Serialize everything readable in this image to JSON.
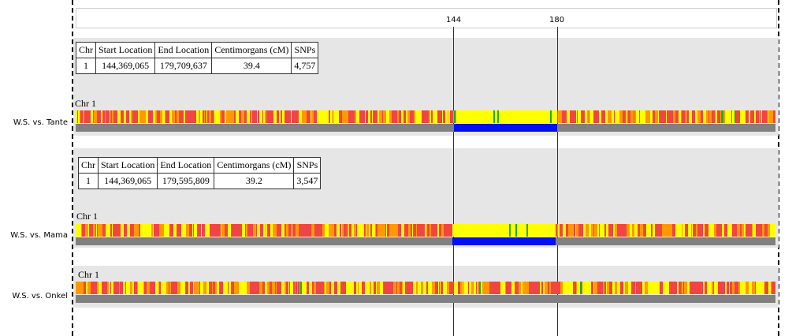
{
  "ruler": {
    "ticks": [
      "144",
      "180"
    ]
  },
  "columns": [
    "Chr",
    "Start Location",
    "End Location",
    "Centimorgans (cM)",
    "SNPs"
  ],
  "comparisons": [
    {
      "label": "W.S. vs. Tante",
      "chr_label": "Chr 1",
      "segment": {
        "chr": "1",
        "start": "144,369,065",
        "end": "179,709,637",
        "cm": "39.4",
        "snps": "4,757"
      }
    },
    {
      "label": "W.S. vs. Mama",
      "chr_label": "Chr 1",
      "segment": {
        "chr": "1",
        "start": "144,369,065",
        "end": "179,595,809",
        "cm": "39.2",
        "snps": "3,547"
      }
    },
    {
      "label": "W.S. vs. Onkel",
      "chr_label": "Chr 1"
    }
  ],
  "colors": {
    "red": "#f04545",
    "yellow": "#ffff00",
    "orange": "#ff9900",
    "green": "#22aa22",
    "blue": "#0010ee",
    "grey": "#808080"
  }
}
